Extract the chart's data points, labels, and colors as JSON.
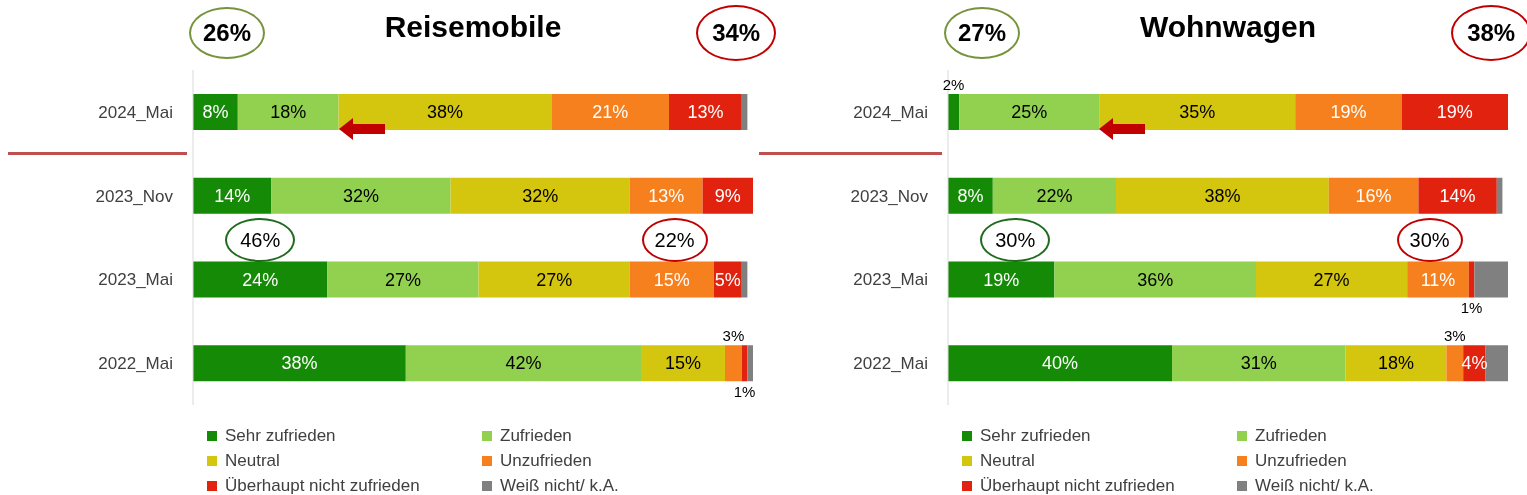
{
  "chart_data": [
    {
      "type": "bar",
      "title": "Reisemobile",
      "orientation": "horizontal",
      "stacked": true,
      "categories": [
        "2024_Mai",
        "2023_Nov",
        "2023_Mai",
        "2022_Mai"
      ],
      "xlim": [
        0,
        100
      ],
      "tick_labels": "y",
      "grid": false,
      "legend": "bottom",
      "annotations": [
        "26%",
        "34%",
        "46%",
        "22%"
      ],
      "series": [
        {
          "name": "Sehr zufrieden",
          "color": "#158a06",
          "values": [
            8,
            14,
            24,
            38
          ],
          "value_labels": [
            "8%",
            "14%",
            "24%",
            "38%"
          ]
        },
        {
          "name": "Zufrieden",
          "color": "#92d050",
          "values": [
            18,
            32,
            27,
            42
          ],
          "value_labels": [
            "18%",
            "32%",
            "27%",
            "42%"
          ]
        },
        {
          "name": "Neutral",
          "color": "#d4c50f",
          "values": [
            38,
            32,
            27,
            15
          ],
          "value_labels": [
            "38%",
            "32%",
            "27%",
            "15%"
          ]
        },
        {
          "name": "Unzufrieden",
          "color": "#f7801e",
          "values": [
            21,
            13,
            15,
            3
          ],
          "value_labels": [
            "21%",
            "13%",
            "15%",
            "3%"
          ]
        },
        {
          "name": "Überhaupt nicht zufrieden",
          "color": "#e0220f",
          "values": [
            13,
            9,
            5,
            1
          ],
          "value_labels": [
            "13%",
            "9%",
            "5%",
            "1%"
          ]
        },
        {
          "name": "Weiß nicht/ k.A.",
          "color": "#808080",
          "values": [
            1,
            0,
            1,
            1
          ],
          "value_labels": [
            null,
            null,
            null,
            null
          ]
        }
      ]
    },
    {
      "type": "bar",
      "title": "Wohnwagen",
      "orientation": "horizontal",
      "stacked": true,
      "categories": [
        "2024_Mai",
        "2023_Nov",
        "2023_Mai",
        "2022_Mai"
      ],
      "xlim": [
        0,
        100
      ],
      "tick_labels": "y",
      "grid": false,
      "legend": "bottom",
      "annotations": [
        "27%",
        "38%",
        "30%",
        "30%"
      ],
      "series": [
        {
          "name": "Sehr zufrieden",
          "color": "#158a06",
          "values": [
            2,
            8,
            19,
            40
          ],
          "value_labels": [
            "2%",
            "8%",
            "19%",
            "40%"
          ]
        },
        {
          "name": "Zufrieden",
          "color": "#92d050",
          "values": [
            25,
            22,
            36,
            31
          ],
          "value_labels": [
            "25%",
            "22%",
            "36%",
            "31%"
          ]
        },
        {
          "name": "Neutral",
          "color": "#d4c50f",
          "values": [
            35,
            38,
            27,
            18
          ],
          "value_labels": [
            "35%",
            "38%",
            "27%",
            "18%"
          ]
        },
        {
          "name": "Unzufrieden",
          "color": "#f7801e",
          "values": [
            19,
            16,
            11,
            3
          ],
          "value_labels": [
            "19%",
            "16%",
            "11%",
            "3%"
          ]
        },
        {
          "name": "Überhaupt nicht zufrieden",
          "color": "#e0220f",
          "values": [
            19,
            14,
            1,
            4
          ],
          "value_labels": [
            "19%",
            "14%",
            "1%",
            "4%"
          ]
        },
        {
          "name": "Weiß nicht/ k.A.",
          "color": "#808080",
          "values": [
            0,
            1,
            6,
            4
          ],
          "value_labels": [
            null,
            null,
            null,
            null
          ]
        }
      ]
    }
  ]
}
